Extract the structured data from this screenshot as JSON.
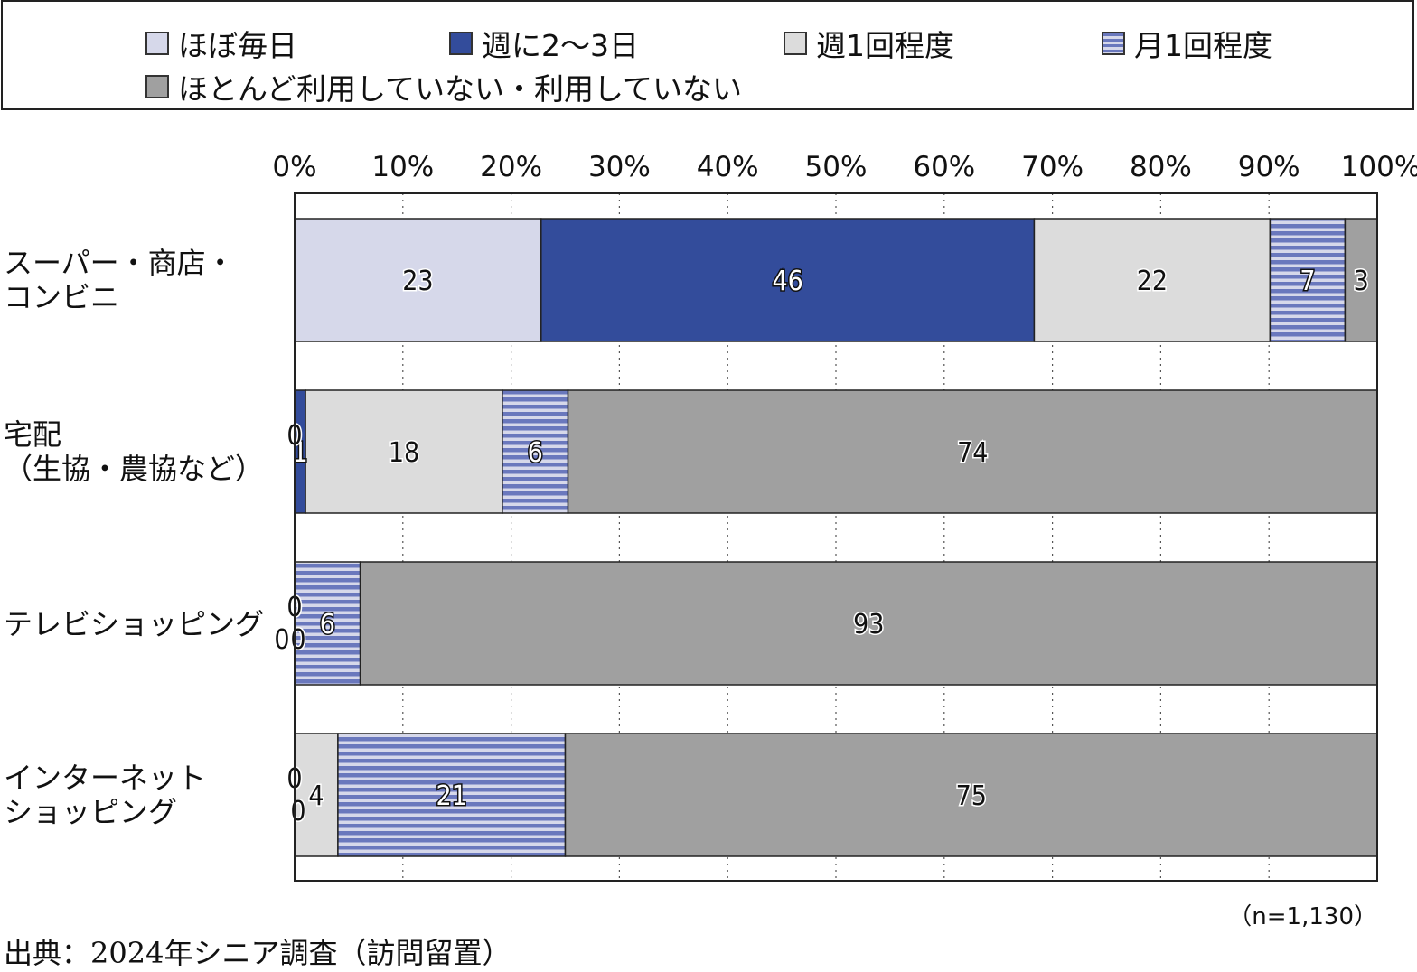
{
  "legend": [
    {
      "label": "ほぼ毎日",
      "color": "#d6d8ea",
      "pattern": "solid"
    },
    {
      "label": "週に2～3日",
      "color": "#334c9b",
      "pattern": "solid"
    },
    {
      "label": "週1回程度",
      "color": "#dcdcdc",
      "pattern": "solid"
    },
    {
      "label": "月1回程度",
      "color": "#6a78bd",
      "pattern": "stripes"
    },
    {
      "label": "ほとんど利用していない・利用していない",
      "color": "#a0a0a0",
      "pattern": "solid"
    }
  ],
  "chart_data": {
    "type": "bar",
    "orientation": "horizontal",
    "stacked": true,
    "categories": [
      "スーパー・商店・\nコンビニ",
      "宅配\n（生協・農協など）",
      "テレビショッピング",
      "インターネット\nショッピング"
    ],
    "series": [
      {
        "name": "ほぼ毎日",
        "values": [
          23,
          0,
          0,
          0
        ]
      },
      {
        "name": "週に2～3日",
        "values": [
          46,
          1,
          0,
          0
        ]
      },
      {
        "name": "週1回程度",
        "values": [
          22,
          18,
          0,
          4
        ]
      },
      {
        "name": "月1回程度",
        "values": [
          7,
          6,
          6,
          21
        ]
      },
      {
        "name": "ほとんど利用していない・利用していない",
        "values": [
          3,
          74,
          93,
          75
        ]
      }
    ],
    "xlim": [
      0,
      100
    ],
    "x_ticks": [
      "0%",
      "10%",
      "20%",
      "30%",
      "40%",
      "50%",
      "60%",
      "70%",
      "80%",
      "90%",
      "100%"
    ],
    "grid": "vertical dotted",
    "legend_position": "top"
  },
  "n_note": "（n=1,130）",
  "source": "出典：2024年シニア調査（訪問留置）"
}
